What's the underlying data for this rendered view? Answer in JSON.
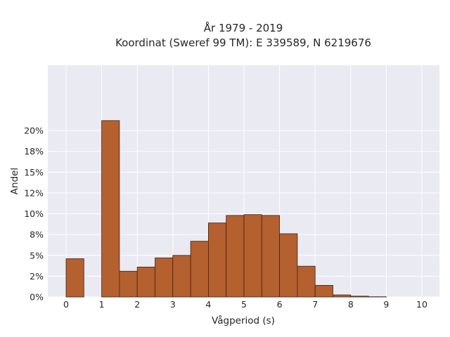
{
  "chart_data": {
    "type": "bar",
    "title": "År 1979 - 2019",
    "subtitle": "Koordinat (Sweref 99 TM): E 339589, N 6219676",
    "xlabel": "Vågperiod (s)",
    "ylabel": "Andel",
    "xlim": [
      -0.5,
      10.5
    ],
    "ylim": [
      0,
      21.8
    ],
    "x_ticks": [
      0,
      1,
      2,
      3,
      4,
      5,
      6,
      7,
      8,
      9,
      10
    ],
    "x_tick_labels": [
      "0",
      "1",
      "2",
      "3",
      "4",
      "5",
      "6",
      "7",
      "8",
      "9",
      "10"
    ],
    "y_ticks": [
      0,
      2.5,
      5,
      7.5,
      10,
      12.5,
      15,
      17.5,
      20
    ],
    "y_tick_labels": [
      "0%",
      "2%",
      "5%",
      "8%",
      "10%",
      "12%",
      "15%",
      "18%",
      "20%"
    ],
    "bin_width": 0.5,
    "bins_start": [
      0,
      0.5,
      1,
      1.5,
      2,
      2.5,
      3,
      3.5,
      4,
      4.5,
      5,
      5.5,
      6,
      6.5,
      7,
      7.5,
      8,
      8.5,
      9,
      9.5
    ],
    "values": [
      4.6,
      0,
      21.2,
      3.1,
      3.6,
      4.7,
      5.0,
      6.7,
      8.9,
      9.8,
      9.9,
      9.8,
      7.6,
      3.7,
      1.4,
      0.25,
      0.1,
      0.03,
      0,
      0
    ],
    "grid": true,
    "colors": {
      "bar_fill": "#b5602f",
      "bar_stroke": "#3d2418",
      "plot_background": "#eaeaf2",
      "grid": "#ffffff"
    }
  }
}
